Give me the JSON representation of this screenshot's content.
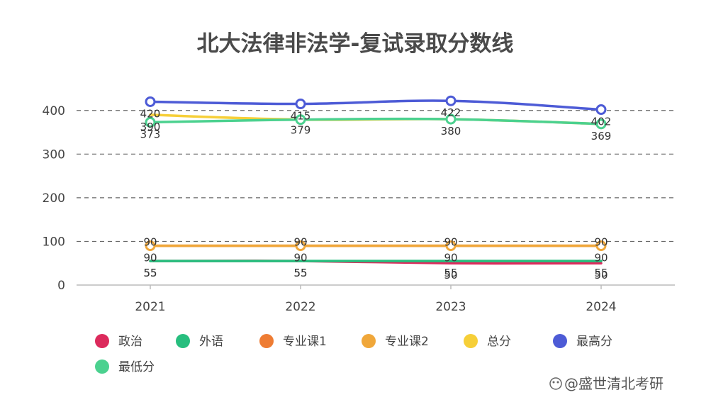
{
  "chart_data": {
    "type": "line",
    "title": "北大法律非法学-复试录取分数线",
    "categories": [
      "2021",
      "2022",
      "2023",
      "2024"
    ],
    "ylim": [
      0,
      450
    ],
    "yticks": [
      0,
      100,
      200,
      300,
      400
    ],
    "grid": true,
    "legend_position": "bottom-left",
    "series": [
      {
        "name": "政治",
        "color": "#dc2a5c",
        "values": [
          55,
          55,
          50,
          50
        ],
        "labels": [
          "55",
          "55",
          "50",
          "50"
        ],
        "marker": false
      },
      {
        "name": "外语",
        "color": "#27be7e",
        "values": [
          55,
          55,
          55,
          55
        ],
        "labels": [
          "55",
          "55",
          "55",
          "55"
        ],
        "marker": false
      },
      {
        "name": "专业课1",
        "color": "#ee7c33",
        "values": [
          90,
          90,
          90,
          90
        ],
        "labels": [
          "90",
          "90",
          "90",
          "90"
        ],
        "marker": false
      },
      {
        "name": "专业课2",
        "color": "#f0a73a",
        "values": [
          90,
          90,
          90,
          90
        ],
        "labels": [
          "90",
          "90",
          "90",
          "90"
        ],
        "marker": true
      },
      {
        "name": "总分",
        "color": "#f6cf38",
        "values": [
          390,
          379,
          380,
          369
        ],
        "labels": [
          "390",
          "",
          "",
          ""
        ],
        "marker": false
      },
      {
        "name": "最高分",
        "color": "#4d5bd6",
        "values": [
          420,
          415,
          422,
          402
        ],
        "labels": [
          "420",
          "415",
          "422",
          "402"
        ],
        "marker": true
      },
      {
        "name": "最低分",
        "color": "#4bd18f",
        "values": [
          373,
          379,
          380,
          369
        ],
        "labels": [
          "373",
          "379",
          "380",
          "369"
        ],
        "marker": true
      }
    ]
  },
  "watermark": "@盛世清北考研"
}
